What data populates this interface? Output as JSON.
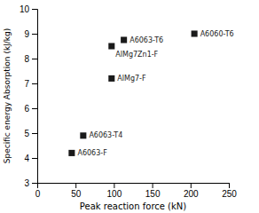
{
  "chart_data": {
    "type": "scatter",
    "x": [
      205,
      113,
      97,
      97,
      60,
      45
    ],
    "values": [
      9.0,
      8.75,
      8.5,
      7.2,
      4.9,
      4.2
    ],
    "labels": [
      "A6060-T6",
      "A6063-T6",
      "AlMg7Zn1-F",
      "AlMg7-F",
      "A6063-T4",
      "A6063-F"
    ],
    "marker": "square",
    "color": "#1a1a1a",
    "xlabel": "Peak reaction force (kN)",
    "ylabel": "Specific energy Absorption (kJ/kg)",
    "xlim": [
      0,
      250
    ],
    "ylim": [
      3,
      10
    ],
    "xticks": [
      0,
      50,
      100,
      150,
      200,
      250
    ],
    "yticks": [
      3,
      4,
      5,
      6,
      7,
      8,
      9,
      10
    ]
  }
}
